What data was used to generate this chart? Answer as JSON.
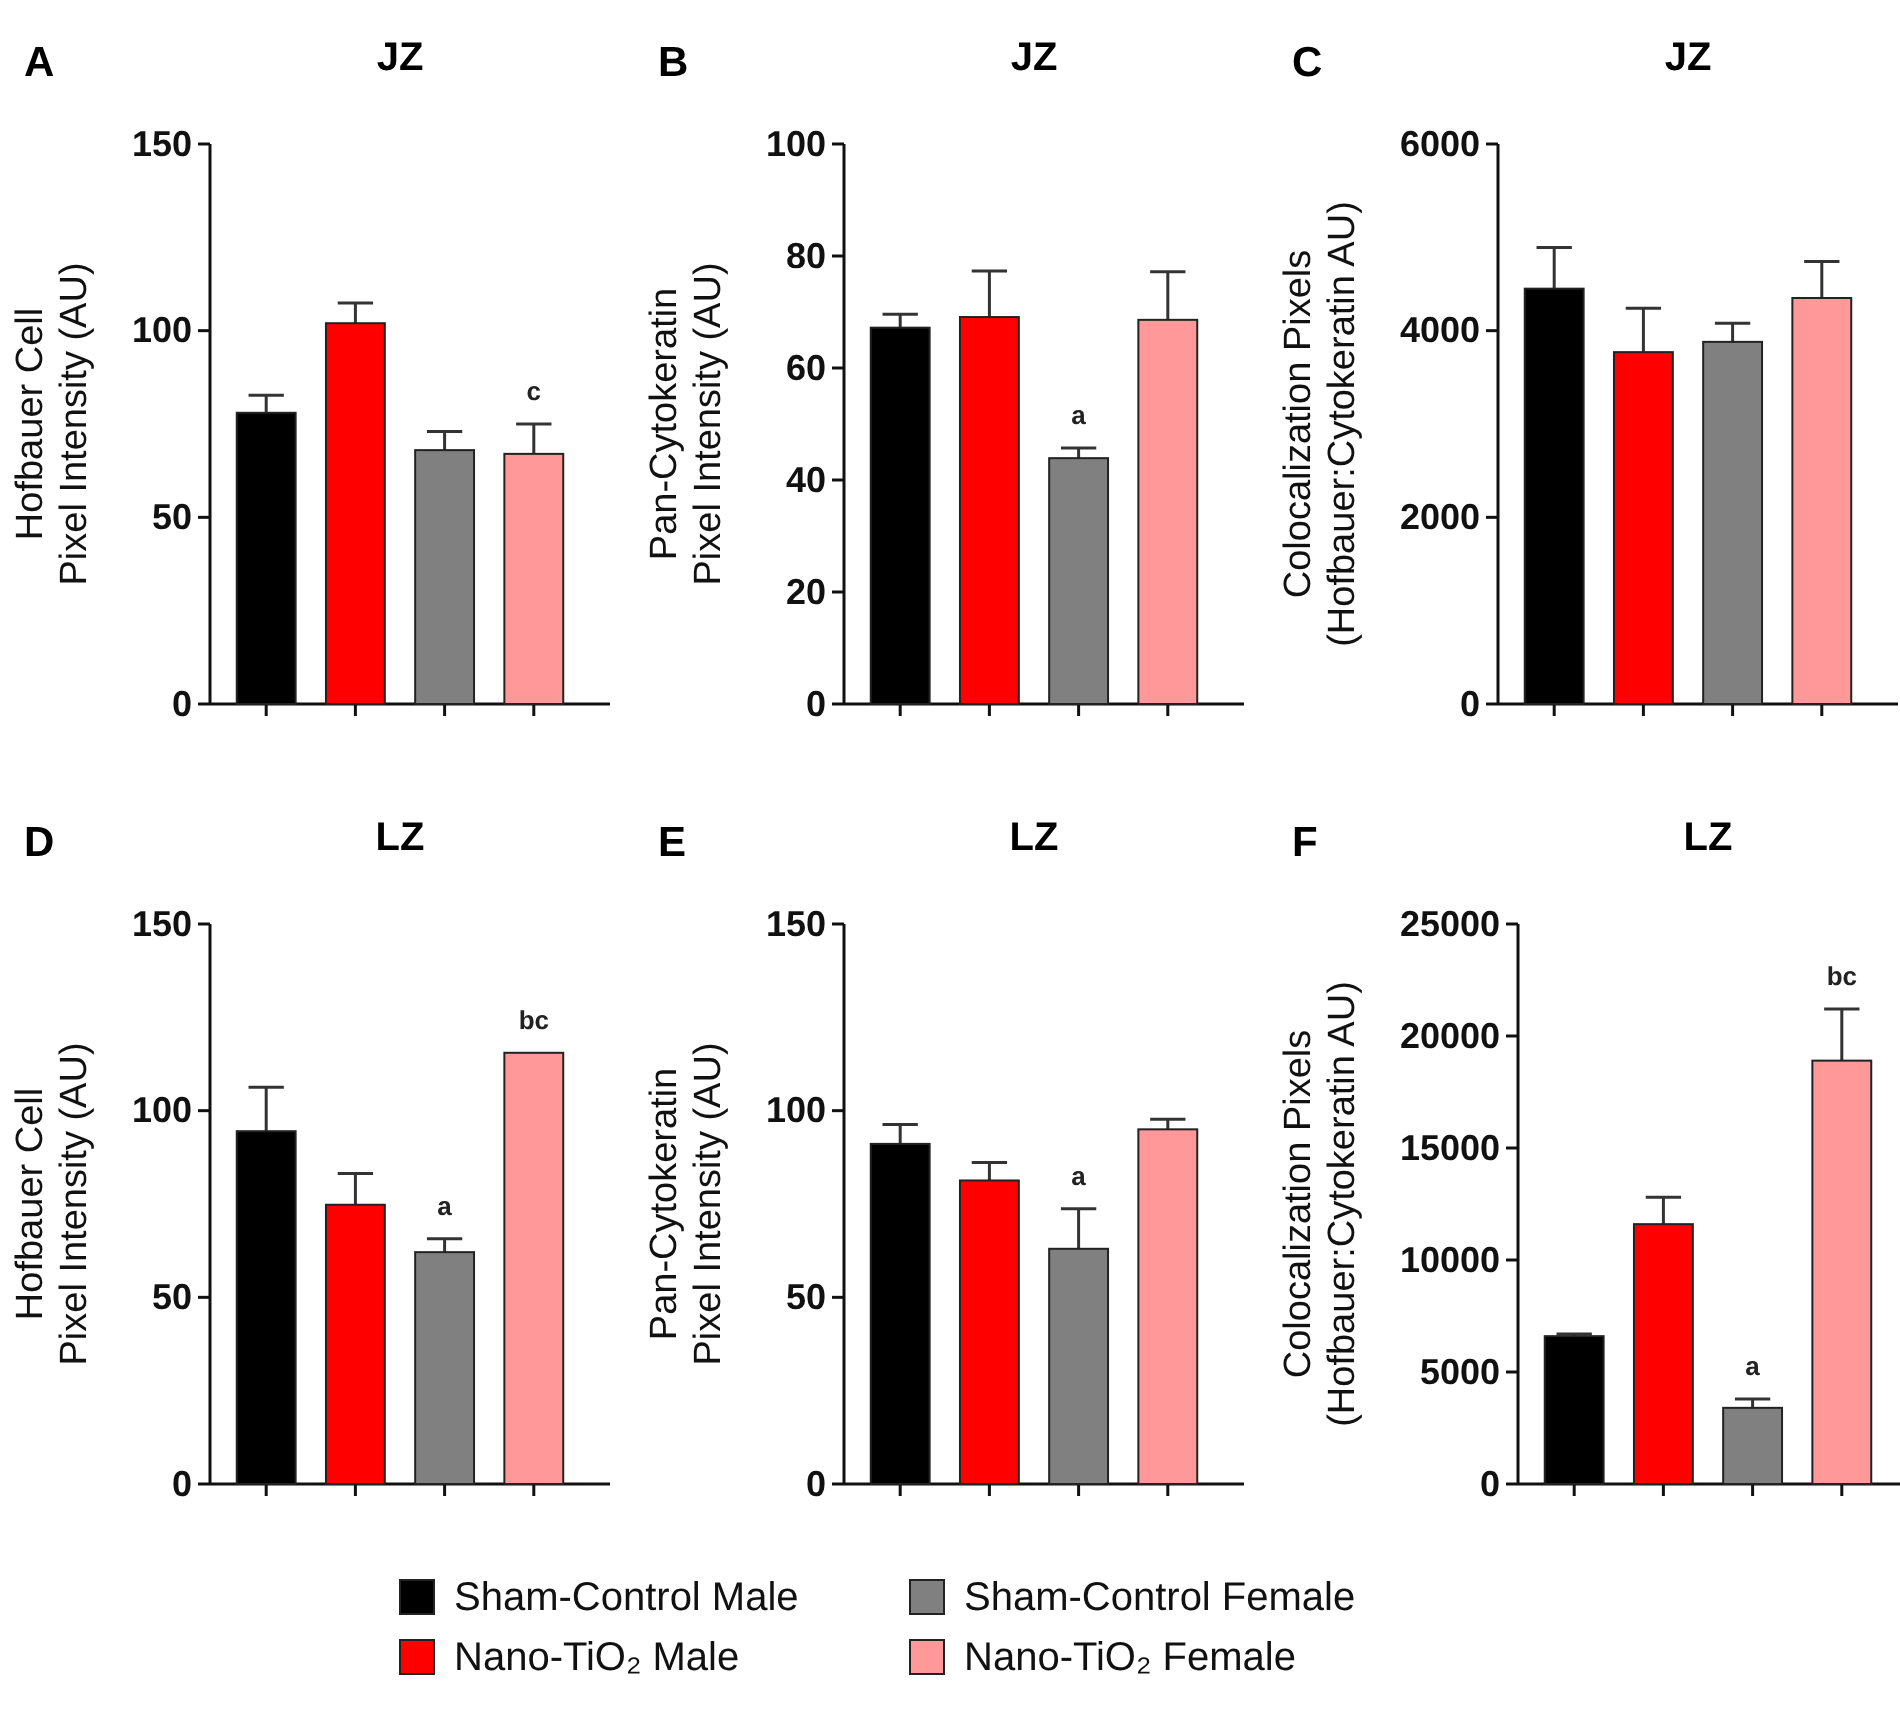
{
  "chart_data": [
    {
      "type": "bar",
      "title": "JZ",
      "ylabel": "Hofbauer Cell\nPixel Intensity (AU)",
      "categories": [
        null
      ],
      "ylim": [
        0,
        150
      ],
      "yticks": [
        0,
        50,
        100,
        150
      ],
      "legend": "bottom",
      "annotations": [
        "A"
      ],
      "series": [
        {
          "name": "Sham-Control Male",
          "color": "#000000",
          "values": [
            78
          ],
          "errors": [
            4.7
          ]
        },
        {
          "name": "Nano-TiO₂ Male",
          "color": "#ff0000",
          "values": [
            102
          ],
          "errors": [
            5.4
          ]
        },
        {
          "name": "Sham-Control Female",
          "color": "#808080",
          "values": [
            68
          ],
          "errors": [
            5
          ]
        },
        {
          "name": "Nano-TiO₂ Female",
          "color": "#ff9999",
          "values": [
            67
          ],
          "errors": [
            8
          ],
          "value_labels": [
            "c"
          ]
        }
      ]
    },
    {
      "type": "bar",
      "title": "JZ",
      "ylabel": "Pan-Cytokeratin\nPixel Intensity (AU)",
      "categories": [
        null
      ],
      "ylim": [
        0,
        100
      ],
      "yticks": [
        0,
        20,
        40,
        60,
        80,
        100
      ],
      "annotations": [
        "B"
      ],
      "series": [
        {
          "color": "#000000",
          "values": [
            67.2
          ],
          "errors": [
            2.4
          ]
        },
        {
          "color": "#ff0000",
          "values": [
            69.1
          ],
          "errors": [
            8.2
          ]
        },
        {
          "color": "#808080",
          "values": [
            43.9
          ],
          "errors": [
            1.8
          ],
          "value_labels": [
            "a"
          ]
        },
        {
          "color": "#ff9999",
          "values": [
            68.6
          ],
          "errors": [
            8.6
          ]
        }
      ]
    },
    {
      "type": "bar",
      "title": "JZ",
      "ylabel": "Colocalization Pixels\n(Hofbauer:Cytokeratin AU)",
      "categories": [
        null
      ],
      "ylim": [
        0,
        6000
      ],
      "yticks": [
        0,
        2000,
        4000,
        6000
      ],
      "annotations": [
        "C"
      ],
      "series": [
        {
          "color": "#000000",
          "values": [
            4450
          ],
          "errors": [
            440
          ]
        },
        {
          "color": "#ff0000",
          "values": [
            3770
          ],
          "errors": [
            470
          ]
        },
        {
          "color": "#808080",
          "values": [
            3880
          ],
          "errors": [
            200
          ]
        },
        {
          "color": "#ff9999",
          "values": [
            4350
          ],
          "errors": [
            390
          ]
        }
      ]
    },
    {
      "type": "bar",
      "title": "LZ",
      "ylabel": "Hofbauer Cell\nPixel Intensity (AU)",
      "categories": [
        null
      ],
      "ylim": [
        0,
        150
      ],
      "yticks": [
        0,
        50,
        100,
        150
      ],
      "annotations": [
        "D"
      ],
      "series": [
        {
          "color": "#000000",
          "values": [
            94.5
          ],
          "errors": [
            11.8
          ]
        },
        {
          "color": "#ff0000",
          "values": [
            74.8
          ],
          "errors": [
            8.4
          ]
        },
        {
          "color": "#808080",
          "values": [
            62.1
          ],
          "errors": [
            3.6
          ],
          "value_labels": [
            "a"
          ]
        },
        {
          "color": "#ff9999",
          "values": [
            115.5
          ],
          "errors": [
            null
          ],
          "value_labels": [
            "bc"
          ]
        }
      ]
    },
    {
      "type": "bar",
      "title": "LZ",
      "ylabel": "Pan-Cytokeratin\nPixel Intensity (AU)",
      "categories": [
        null
      ],
      "ylim": [
        0,
        150
      ],
      "yticks": [
        0,
        50,
        100,
        150
      ],
      "annotations": [
        "E"
      ],
      "series": [
        {
          "color": "#000000",
          "values": [
            91.1
          ],
          "errors": [
            5.2
          ]
        },
        {
          "color": "#ff0000",
          "values": [
            81.3
          ],
          "errors": [
            4.8
          ]
        },
        {
          "color": "#808080",
          "values": [
            63
          ],
          "errors": [
            10.7
          ],
          "value_labels": [
            "a"
          ]
        },
        {
          "color": "#ff9999",
          "values": [
            95
          ],
          "errors": [
            2.7
          ]
        }
      ]
    },
    {
      "type": "bar",
      "title": "LZ",
      "ylabel": "Colocalization Pixels\n(Hofbauer:Cytokeratin AU)",
      "categories": [
        null
      ],
      "ylim": [
        0,
        25000
      ],
      "yticks": [
        0,
        5000,
        10000,
        15000,
        20000,
        25000
      ],
      "annotations": [
        "F"
      ],
      "series": [
        {
          "color": "#000000",
          "values": [
            6600
          ],
          "errors": [
            100
          ]
        },
        {
          "color": "#ff0000",
          "values": [
            11600
          ],
          "errors": [
            1200
          ]
        },
        {
          "color": "#808080",
          "values": [
            3400
          ],
          "errors": [
            400
          ],
          "value_labels": [
            "a"
          ]
        },
        {
          "color": "#ff9999",
          "values": [
            18900
          ],
          "errors": [
            2300
          ],
          "value_labels": [
            "bc"
          ]
        }
      ]
    }
  ]
}
